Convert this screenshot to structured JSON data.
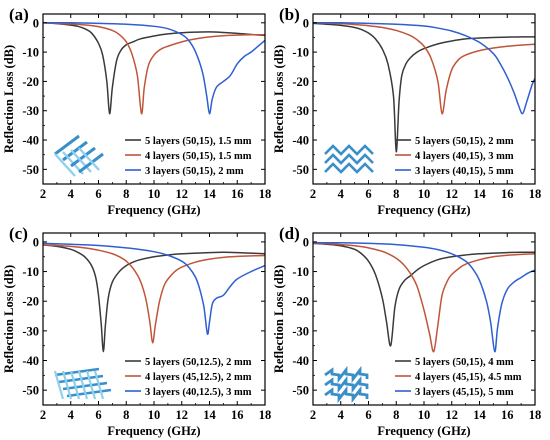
{
  "chart_data": [
    {
      "panel": "(a)",
      "type": "line",
      "xlabel": "Frequency (GHz)",
      "ylabel": "Reflection Loss (dB)",
      "xlim": [
        2,
        18
      ],
      "ylim": [
        -55,
        3
      ],
      "xticks": [
        2,
        4,
        6,
        8,
        10,
        12,
        14,
        16,
        18
      ],
      "yticks": [
        0,
        -10,
        -20,
        -30,
        -40,
        -50
      ],
      "legend_position": "bottom-right",
      "inset_icon": "grid-lattice-icon",
      "series": [
        {
          "name": "5 layers (50,15), 1.5 mm",
          "color": "#3a3a3a",
          "x": [
            2,
            3,
            4,
            4.5,
            5,
            5.5,
            6,
            6.3,
            6.6,
            6.8,
            7.0,
            7.3,
            7.6,
            8,
            8.5,
            9,
            10,
            11,
            12,
            13,
            14,
            15,
            16,
            17,
            18
          ],
          "y": [
            0,
            -0.3,
            -0.8,
            -1.2,
            -2,
            -3.5,
            -7,
            -11,
            -20,
            -31,
            -22,
            -13,
            -9.5,
            -7.5,
            -6.5,
            -5.5,
            -4.5,
            -3.8,
            -3.4,
            -3.2,
            -3.1,
            -3.3,
            -3.6,
            -4,
            -4.3
          ]
        },
        {
          "name": "4 layers (50,15), 1.5 mm",
          "color": "#c0553a",
          "x": [
            2,
            3,
            4,
            5,
            6,
            7,
            7.5,
            8,
            8.4,
            8.8,
            9.1,
            9.3,
            9.6,
            10,
            10.5,
            11,
            12,
            13,
            14,
            15,
            16,
            17,
            18
          ],
          "y": [
            0,
            -0.2,
            -0.4,
            -0.7,
            -1.3,
            -2.6,
            -4,
            -6.5,
            -10.5,
            -18,
            -31,
            -22,
            -14.5,
            -11,
            -9,
            -8,
            -6.5,
            -5.5,
            -4.8,
            -4.4,
            -4.2,
            -4.1,
            -4.1
          ]
        },
        {
          "name": "3 layers (50,15), 2 mm",
          "color": "#2f5fd0",
          "x": [
            2,
            4,
            6,
            8,
            10,
            11,
            12,
            12.5,
            13,
            13.5,
            13.8,
            14.0,
            14.2,
            14.5,
            15,
            15.5,
            16,
            16.5,
            17,
            17.5,
            18
          ],
          "y": [
            0,
            0,
            -0.2,
            -0.5,
            -1.2,
            -2,
            -4,
            -6,
            -10,
            -17,
            -25,
            -31,
            -26,
            -22,
            -20,
            -18,
            -14,
            -11.5,
            -10,
            -8,
            -6
          ]
        }
      ]
    },
    {
      "panel": "(b)",
      "type": "line",
      "xlabel": "Frequency (GHz)",
      "ylabel": "Reflection Loss (dB)",
      "xlim": [
        2,
        18
      ],
      "ylim": [
        -55,
        3
      ],
      "xticks": [
        2,
        4,
        6,
        8,
        10,
        12,
        14,
        16,
        18
      ],
      "yticks": [
        0,
        -10,
        -20,
        -30,
        -40,
        -50
      ],
      "legend_position": "bottom-right",
      "inset_icon": "zigzag-lattice-icon",
      "series": [
        {
          "name": "5 layers (50,15), 2 mm",
          "color": "#3a3a3a",
          "x": [
            2,
            3,
            4,
            5,
            5.5,
            6,
            6.5,
            7,
            7.4,
            7.8,
            8.0,
            8.2,
            8.4,
            8.7,
            9,
            9.5,
            10,
            11,
            12,
            13,
            14,
            15,
            16,
            17,
            18
          ],
          "y": [
            -0.2,
            -0.5,
            -0.9,
            -1.6,
            -2.3,
            -3.5,
            -5.5,
            -9,
            -14,
            -25,
            -44,
            -27,
            -18,
            -14,
            -12,
            -10,
            -8.8,
            -7.2,
            -6.2,
            -5.5,
            -5.2,
            -5,
            -4.9,
            -4.8,
            -4.8
          ]
        },
        {
          "name": "4 layers (40,15), 3 mm",
          "color": "#c0553a",
          "x": [
            2,
            3,
            4,
            5,
            6,
            7,
            8,
            9,
            9.5,
            10,
            10.5,
            11,
            11.3,
            11.6,
            12,
            12.5,
            13,
            14,
            15,
            16,
            17,
            18
          ],
          "y": [
            0,
            -0.1,
            -0.3,
            -0.6,
            -1,
            -1.6,
            -2.6,
            -4.3,
            -5.8,
            -8,
            -12,
            -20,
            -31,
            -23,
            -16,
            -12.5,
            -11,
            -9.5,
            -8.6,
            -8,
            -7.6,
            -7.3
          ]
        },
        {
          "name": "3 layers (40,15), 5 mm",
          "color": "#2f5fd0",
          "x": [
            2,
            4,
            6,
            8,
            10,
            11,
            12,
            13,
            14,
            15,
            15.5,
            16,
            16.5,
            16.8,
            17.1,
            17.4,
            17.8,
            18
          ],
          "y": [
            0,
            0,
            -0.2,
            -0.5,
            -1.1,
            -1.8,
            -2.8,
            -4.4,
            -6.7,
            -10.5,
            -14,
            -18.5,
            -24,
            -28,
            -31,
            -27,
            -21,
            -19
          ]
        }
      ]
    },
    {
      "panel": "(c)",
      "type": "line",
      "xlabel": "Frequency (GHz)",
      "ylabel": "Reflection Loss (dB)",
      "xlim": [
        2,
        18
      ],
      "ylim": [
        -55,
        3
      ],
      "xticks": [
        2,
        4,
        6,
        8,
        10,
        12,
        14,
        16,
        18
      ],
      "yticks": [
        0,
        -10,
        -20,
        -30,
        -40,
        -50
      ],
      "legend_position": "bottom-right",
      "inset_icon": "woven-lattice-icon",
      "series": [
        {
          "name": "5 layers (50,12.5), 2 mm",
          "color": "#3a3a3a",
          "x": [
            2,
            3,
            4,
            4.5,
            5,
            5.5,
            5.8,
            6.0,
            6.2,
            6.35,
            6.5,
            6.7,
            7,
            7.5,
            8,
            8.5,
            9,
            10,
            11,
            12,
            13,
            14,
            15,
            16,
            17,
            18
          ],
          "y": [
            -1,
            -1.5,
            -2.5,
            -3.5,
            -5,
            -8,
            -12,
            -18,
            -28,
            -37,
            -28,
            -19,
            -13.5,
            -10,
            -8,
            -6.8,
            -6,
            -5,
            -4.4,
            -4,
            -3.8,
            -3.6,
            -3.5,
            -3.6,
            -3.8,
            -4
          ]
        },
        {
          "name": "4 layers (45,12.5), 2 mm",
          "color": "#c0553a",
          "x": [
            2,
            3,
            4,
            5,
            6,
            7,
            7.5,
            8,
            8.5,
            9,
            9.4,
            9.7,
            9.9,
            10.1,
            10.4,
            10.8,
            11.5,
            12,
            13,
            14,
            15,
            16,
            17,
            18
          ],
          "y": [
            -1,
            -1.2,
            -1.5,
            -2,
            -2.8,
            -4,
            -5,
            -6.5,
            -9,
            -13,
            -19,
            -27,
            -34,
            -28,
            -20,
            -14,
            -10,
            -8.5,
            -6.8,
            -5.8,
            -5.2,
            -4.9,
            -4.7,
            -4.6
          ]
        },
        {
          "name": "3 layers (40,12.5), 3 mm",
          "color": "#2f5fd0",
          "x": [
            2,
            4,
            6,
            8,
            10,
            11,
            12,
            12.5,
            13,
            13.3,
            13.6,
            13.85,
            14.0,
            14.2,
            14.5,
            15,
            15.5,
            16,
            17,
            18
          ],
          "y": [
            -0.5,
            -0.8,
            -1.2,
            -2,
            -3.3,
            -4.5,
            -6.5,
            -8.5,
            -12,
            -16,
            -22,
            -31,
            -27,
            -21,
            -19,
            -18,
            -15,
            -12.5,
            -10,
            -8
          ]
        }
      ]
    },
    {
      "panel": "(d)",
      "type": "line",
      "xlabel": "Frequency (GHz)",
      "ylabel": "Reflection Loss (dB)",
      "xlim": [
        2,
        18
      ],
      "ylim": [
        -55,
        3
      ],
      "xticks": [
        2,
        4,
        6,
        8,
        10,
        12,
        14,
        16,
        18
      ],
      "yticks": [
        0,
        -10,
        -20,
        -30,
        -40,
        -50
      ],
      "legend_position": "bottom-right",
      "inset_icon": "chevron-lattice-icon",
      "series": [
        {
          "name": "5 layers (50,15), 4 mm",
          "color": "#3a3a3a",
          "x": [
            2,
            3,
            4,
            5,
            5.5,
            6,
            6.5,
            7,
            7.3,
            7.6,
            7.9,
            8.2,
            8.6,
            9,
            9.5,
            10,
            11,
            12,
            13,
            14,
            15,
            16,
            17,
            18
          ],
          "y": [
            -0.5,
            -0.8,
            -1.3,
            -2.5,
            -4,
            -6.5,
            -11,
            -19,
            -27,
            -35,
            -22,
            -16,
            -13,
            -11.5,
            -9.5,
            -8,
            -6,
            -5,
            -4.4,
            -4,
            -3.8,
            -3.6,
            -3.5,
            -3.5
          ]
        },
        {
          "name": "4 layers (45,15), 4.5 mm",
          "color": "#c0553a",
          "x": [
            2,
            3,
            4,
            5,
            6,
            7,
            7.5,
            8,
            8.5,
            9,
            9.5,
            10,
            10.4,
            10.7,
            11.0,
            11.3,
            11.7,
            12,
            12.5,
            13,
            14,
            15,
            16,
            17,
            18
          ],
          "y": [
            -0.5,
            -0.6,
            -0.9,
            -1.3,
            -2,
            -3.2,
            -4.2,
            -5.5,
            -7.5,
            -10.5,
            -15,
            -23,
            -31,
            -37,
            -28,
            -18,
            -13,
            -11,
            -9,
            -7.5,
            -6,
            -5,
            -4.5,
            -4.2,
            -4
          ]
        },
        {
          "name": "3 layers (45,15), 5 mm",
          "color": "#2f5fd0",
          "x": [
            2,
            4,
            6,
            8,
            10,
            11,
            12,
            13,
            13.5,
            14,
            14.5,
            14.8,
            15.1,
            15.3,
            15.6,
            16,
            16.5,
            17,
            17.5,
            18
          ],
          "y": [
            -0.3,
            -0.3,
            -0.5,
            -0.9,
            -1.8,
            -2.6,
            -4,
            -6.5,
            -9,
            -13,
            -20,
            -27,
            -37,
            -29,
            -21,
            -16,
            -13.5,
            -12,
            -10.5,
            -9.5
          ]
        }
      ]
    }
  ]
}
